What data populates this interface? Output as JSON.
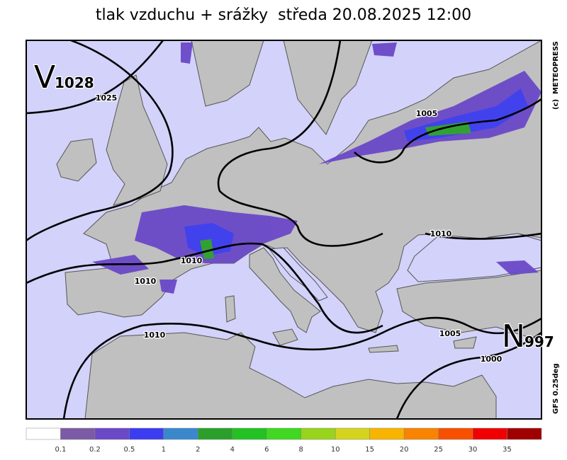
{
  "title": "tlak vzduchu + srážky  středa 20.08.2025 12:00",
  "pressure_centers": [
    {
      "letter": "V",
      "value": "1028"
    },
    {
      "letter": "N",
      "value": "997"
    }
  ],
  "isobar_labels": [
    "1025",
    "1005",
    "1010",
    "1010",
    "1010",
    "1010",
    "1005",
    "1000"
  ],
  "credit": "(c)  METEOPRESS",
  "model": "GFS 0.25deg",
  "legend": {
    "colors": [
      "#ffffff",
      "#7b5aa6",
      "#6a48c8",
      "#3c3cf0",
      "#3a88cc",
      "#2aa02a",
      "#22c222",
      "#40d820",
      "#98d41c",
      "#d4d41c",
      "#f8b400",
      "#f88400",
      "#f85000",
      "#f00000",
      "#a00000"
    ],
    "labels": [
      "0.1",
      "0.2",
      "0.5",
      "1",
      "2",
      "4",
      "6",
      "8",
      "10",
      "15",
      "20",
      "25",
      "30",
      "35"
    ]
  }
}
